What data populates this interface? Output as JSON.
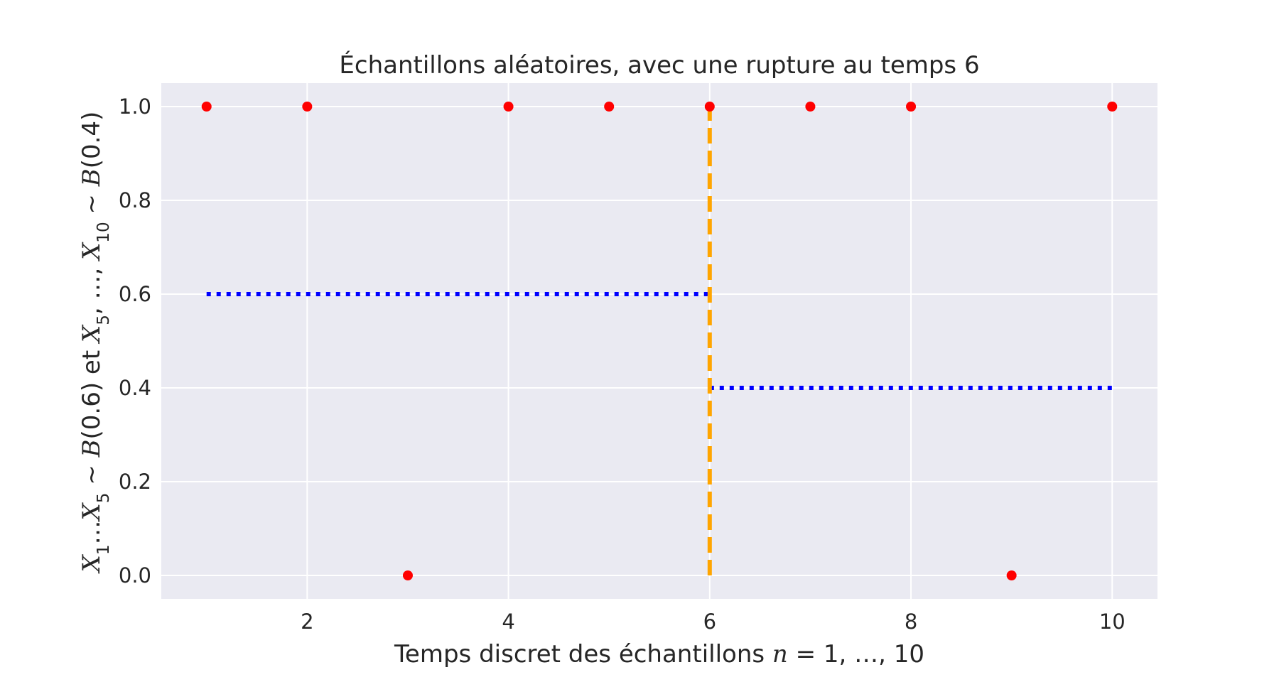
{
  "chart_data": {
    "type": "scatter",
    "title": "Échantillons aléatoires, avec une rupture au temps 6",
    "xlabel": {
      "prefix": "Temps discret des échantillons ",
      "math_var": "n",
      "math_rest": " = 1, …, 10"
    },
    "ylabel": {
      "x1": "X",
      "sub1": "1",
      "ellipsis": "…",
      "x5": "X",
      "sub5": "5",
      "dist1": " ~ ",
      "b1": "B",
      "p1": "(0.6)",
      "et": " et ",
      "x5b": "X",
      "sub5b": "5",
      "sep": ", …, ",
      "x10": "X",
      "sub10": "10",
      "dist2": " ~ ",
      "b2": "B",
      "p2": "(0.4)"
    },
    "xlim": [
      0.55,
      10.45
    ],
    "ylim": [
      -0.05,
      1.05
    ],
    "x_ticks": [
      2,
      4,
      6,
      8,
      10
    ],
    "x_tick_labels": [
      "2",
      "4",
      "6",
      "8",
      "10"
    ],
    "y_ticks": [
      0.0,
      0.2,
      0.4,
      0.6,
      0.8,
      1.0
    ],
    "y_tick_labels": [
      "0.0",
      "0.2",
      "0.4",
      "0.6",
      "0.8",
      "1.0"
    ],
    "grid": true,
    "points": {
      "x": [
        1,
        2,
        3,
        4,
        5,
        6,
        7,
        8,
        9,
        10
      ],
      "y": [
        1,
        1,
        0,
        1,
        1,
        1,
        1,
        1,
        0,
        1
      ],
      "color": "#ff0000"
    },
    "mean_lines": [
      {
        "x_start": 1,
        "x_end": 6,
        "y": 0.6,
        "color": "#0000ff",
        "style": "dotted"
      },
      {
        "x_start": 6,
        "x_end": 10,
        "y": 0.4,
        "color": "#0000ff",
        "style": "dotted"
      }
    ],
    "breakpoint": {
      "x": 6,
      "y_start": 0,
      "y_end": 1,
      "color": "#ffa500",
      "style": "dashed"
    },
    "colors": {
      "plot_background": "#eaeaf2",
      "grid": "#ffffff",
      "text": "#262626"
    }
  }
}
